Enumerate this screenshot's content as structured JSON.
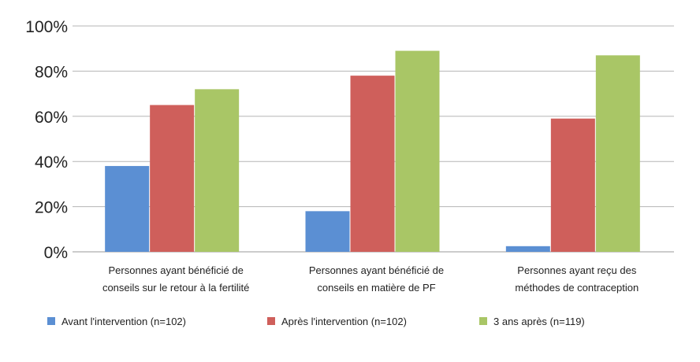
{
  "chart_data": {
    "type": "bar",
    "categories": [
      [
        "Personnes ayant bénéficié de",
        "conseils sur le retour à la fertilité"
      ],
      [
        "Personnes ayant bénéficié de",
        "conseils en matière de PF"
      ],
      [
        "Personnes ayant reçu des",
        "méthodes de contraception"
      ]
    ],
    "series": [
      {
        "name": "Avant l'intervention (n=102)",
        "color": "#5b8fd3",
        "values": [
          38,
          18,
          2.5
        ]
      },
      {
        "name": "Après l'intervention (n=102)",
        "color": "#cf5f5b",
        "values": [
          65,
          78,
          59
        ]
      },
      {
        "name": "3 ans après (n=119)",
        "color": "#a9c666",
        "values": [
          72,
          89,
          87
        ]
      }
    ],
    "ylim": [
      0,
      100
    ],
    "yticks": [
      "0%",
      "20%",
      "40%",
      "60%",
      "80%",
      "100%"
    ],
    "grid": true,
    "legend_position": "bottom"
  }
}
